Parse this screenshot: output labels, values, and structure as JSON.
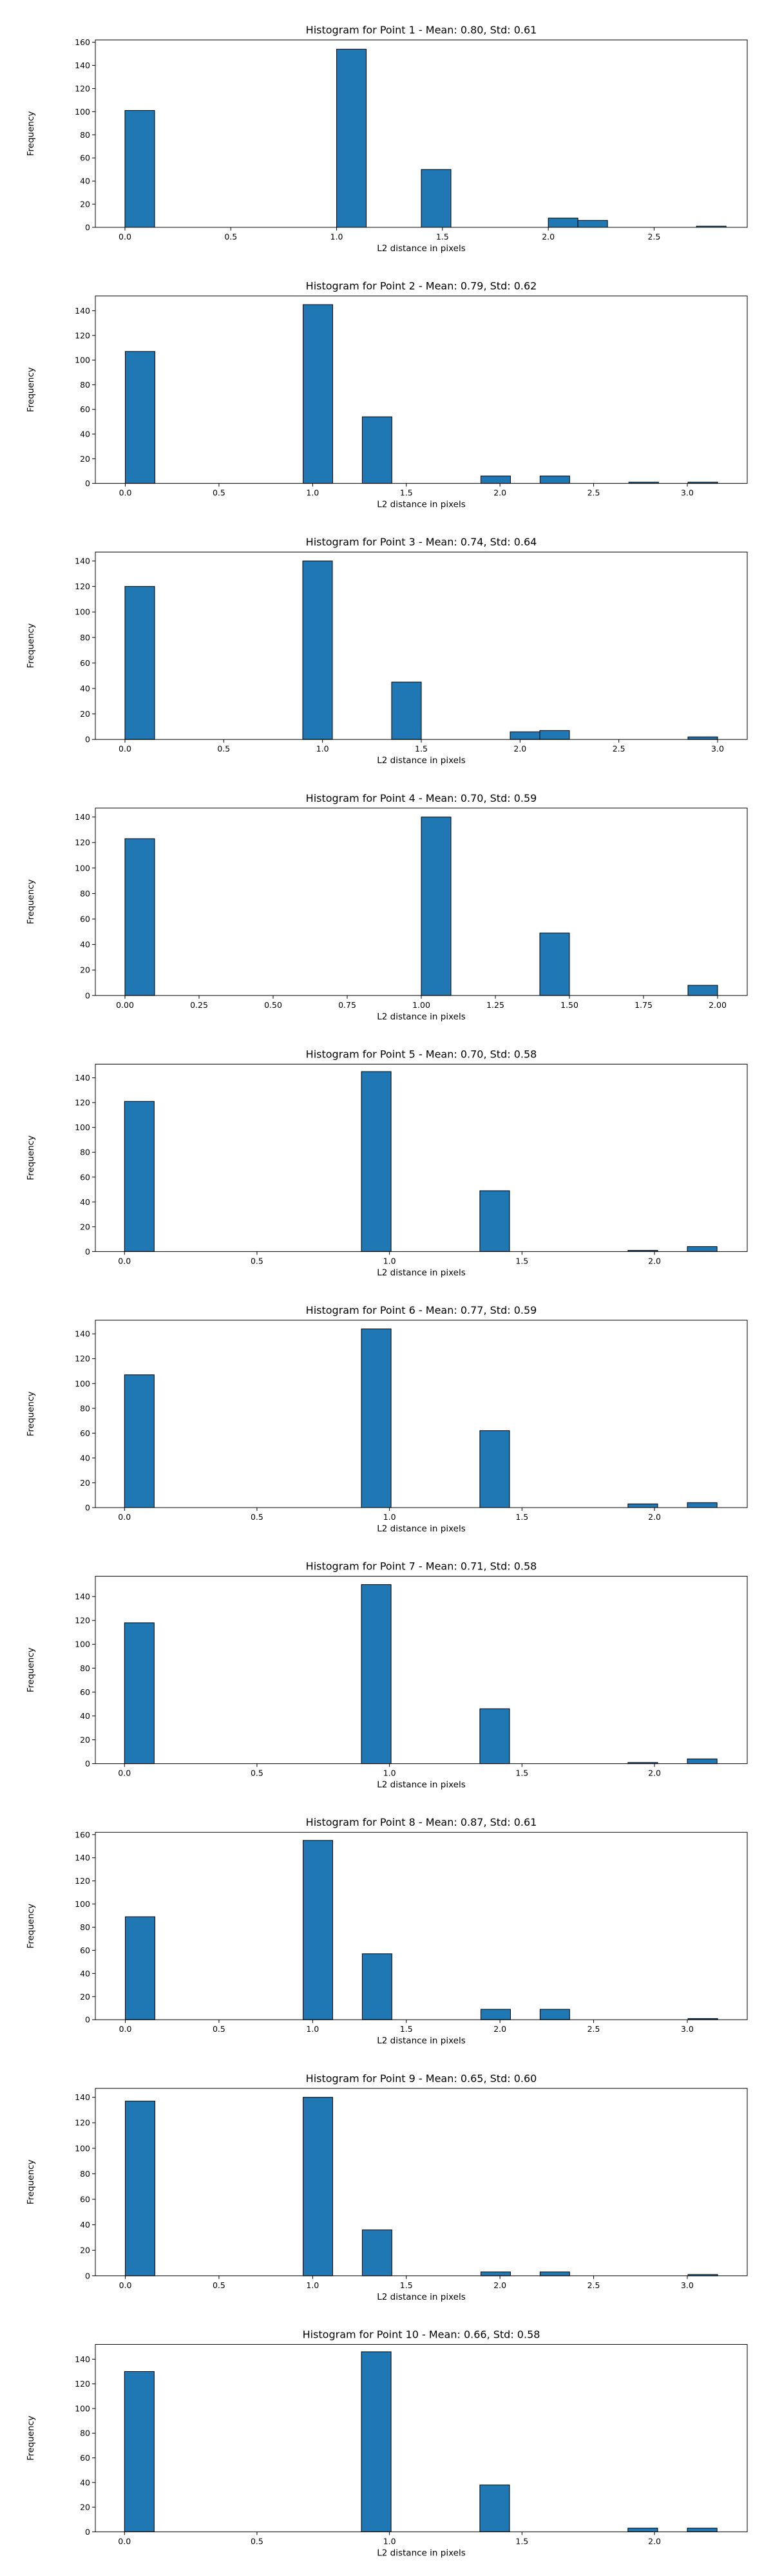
{
  "colors": {
    "bar_fill": "#1f77b4",
    "bar_edge": "#000000",
    "axes": "#000000",
    "background": "#ffffff"
  },
  "chart_data": [
    {
      "type": "bar",
      "title": "Histogram for Point 1 - Mean: 0.80, Std: 0.61",
      "xlabel": "L2 distance in pixels",
      "ylabel": "Frequency",
      "xlim": [
        -0.14,
        2.94
      ],
      "ylim": [
        0,
        162
      ],
      "xticks": [
        0.0,
        0.5,
        1.0,
        1.5,
        2.0,
        2.5
      ],
      "xtick_labels": [
        "0.0",
        "0.5",
        "1.0",
        "1.5",
        "2.0",
        "2.5"
      ],
      "yticks": [
        0,
        20,
        40,
        60,
        80,
        100,
        120,
        140,
        160
      ],
      "ytick_labels": [
        "0",
        "20",
        "40",
        "60",
        "80",
        "100",
        "120",
        "140",
        "160"
      ],
      "bins": [
        [
          0.0,
          0.14,
          101
        ],
        [
          1.0,
          1.14,
          154
        ],
        [
          1.4,
          1.54,
          50
        ],
        [
          2.0,
          2.14,
          8
        ],
        [
          2.14,
          2.28,
          6
        ],
        [
          2.7,
          2.84,
          1
        ]
      ],
      "grid": false,
      "legend": "none"
    },
    {
      "type": "bar",
      "title": "Histogram for Point 2 - Mean: 0.79, Std: 0.62",
      "xlabel": "L2 distance in pixels",
      "ylabel": "Frequency",
      "xlim": [
        -0.16,
        3.32
      ],
      "ylim": [
        0,
        152
      ],
      "xticks": [
        0.0,
        0.5,
        1.0,
        1.5,
        2.0,
        2.5,
        3.0
      ],
      "xtick_labels": [
        "0.0",
        "0.5",
        "1.0",
        "1.5",
        "2.0",
        "2.5",
        "3.0"
      ],
      "yticks": [
        0,
        20,
        40,
        60,
        80,
        100,
        120,
        140
      ],
      "ytick_labels": [
        "0",
        "20",
        "40",
        "60",
        "80",
        "100",
        "120",
        "140"
      ],
      "bins": [
        [
          0.0,
          0.158,
          107
        ],
        [
          0.949,
          1.107,
          145
        ],
        [
          1.265,
          1.423,
          54
        ],
        [
          1.898,
          2.056,
          6
        ],
        [
          2.214,
          2.372,
          6
        ],
        [
          2.688,
          2.846,
          1
        ],
        [
          3.004,
          3.162,
          1
        ]
      ],
      "grid": false,
      "legend": "none"
    },
    {
      "type": "bar",
      "title": "Histogram for Point 3 - Mean: 0.74, Std: 0.64",
      "xlabel": "L2 distance in pixels",
      "ylabel": "Frequency",
      "xlim": [
        -0.15,
        3.15
      ],
      "ylim": [
        0,
        147
      ],
      "xticks": [
        0.0,
        0.5,
        1.0,
        1.5,
        2.0,
        2.5,
        3.0
      ],
      "xtick_labels": [
        "0.0",
        "0.5",
        "1.0",
        "1.5",
        "2.0",
        "2.5",
        "3.0"
      ],
      "yticks": [
        0,
        20,
        40,
        60,
        80,
        100,
        120,
        140
      ],
      "ytick_labels": [
        "0",
        "20",
        "40",
        "60",
        "80",
        "100",
        "120",
        "140"
      ],
      "bins": [
        [
          0.0,
          0.15,
          120
        ],
        [
          0.9,
          1.05,
          140
        ],
        [
          1.35,
          1.5,
          45
        ],
        [
          1.95,
          2.1,
          6
        ],
        [
          2.1,
          2.25,
          7
        ],
        [
          2.85,
          3.0,
          2
        ]
      ],
      "grid": false,
      "legend": "none"
    },
    {
      "type": "bar",
      "title": "Histogram for Point 4 - Mean: 0.70, Std: 0.59",
      "xlabel": "L2 distance in pixels",
      "ylabel": "Frequency",
      "xlim": [
        -0.1,
        2.1
      ],
      "ylim": [
        0,
        147
      ],
      "xticks": [
        0.0,
        0.25,
        0.5,
        0.75,
        1.0,
        1.25,
        1.5,
        1.75,
        2.0
      ],
      "xtick_labels": [
        "0.00",
        "0.25",
        "0.50",
        "0.75",
        "1.00",
        "1.25",
        "1.50",
        "1.75",
        "2.00"
      ],
      "yticks": [
        0,
        20,
        40,
        60,
        80,
        100,
        120,
        140
      ],
      "ytick_labels": [
        "0",
        "20",
        "40",
        "60",
        "80",
        "100",
        "120",
        "140"
      ],
      "bins": [
        [
          0.0,
          0.1,
          123
        ],
        [
          1.0,
          1.1,
          140
        ],
        [
          1.4,
          1.5,
          49
        ],
        [
          1.9,
          2.0,
          8
        ]
      ],
      "grid": false,
      "legend": "none"
    },
    {
      "type": "bar",
      "title": "Histogram for Point 5 - Mean: 0.70, Std: 0.58",
      "xlabel": "L2 distance in pixels",
      "ylabel": "Frequency",
      "xlim": [
        -0.11,
        2.35
      ],
      "ylim": [
        0,
        151
      ],
      "xticks": [
        0.0,
        0.5,
        1.0,
        1.5,
        2.0
      ],
      "xtick_labels": [
        "0.0",
        "0.5",
        "1.0",
        "1.5",
        "2.0"
      ],
      "yticks": [
        0,
        20,
        40,
        60,
        80,
        100,
        120,
        140
      ],
      "ytick_labels": [
        "0",
        "20",
        "40",
        "60",
        "80",
        "100",
        "120",
        "140"
      ],
      "bins": [
        [
          0.0,
          0.112,
          121
        ],
        [
          0.894,
          1.006,
          145
        ],
        [
          1.341,
          1.453,
          49
        ],
        [
          1.9,
          2.012,
          1
        ],
        [
          2.124,
          2.236,
          4
        ]
      ],
      "grid": false,
      "legend": "none"
    },
    {
      "type": "bar",
      "title": "Histogram for Point 6 - Mean: 0.77, Std: 0.59",
      "xlabel": "L2 distance in pixels",
      "ylabel": "Frequency",
      "xlim": [
        -0.11,
        2.35
      ],
      "ylim": [
        0,
        151
      ],
      "xticks": [
        0.0,
        0.5,
        1.0,
        1.5,
        2.0
      ],
      "xtick_labels": [
        "0.0",
        "0.5",
        "1.0",
        "1.5",
        "2.0"
      ],
      "yticks": [
        0,
        20,
        40,
        60,
        80,
        100,
        120,
        140
      ],
      "ytick_labels": [
        "0",
        "20",
        "40",
        "60",
        "80",
        "100",
        "120",
        "140"
      ],
      "bins": [
        [
          0.0,
          0.112,
          107
        ],
        [
          0.894,
          1.006,
          144
        ],
        [
          1.341,
          1.453,
          62
        ],
        [
          1.9,
          2.012,
          3
        ],
        [
          2.124,
          2.236,
          4
        ]
      ],
      "grid": false,
      "legend": "none"
    },
    {
      "type": "bar",
      "title": "Histogram for Point 7 - Mean: 0.71, Std: 0.58",
      "xlabel": "L2 distance in pixels",
      "ylabel": "Frequency",
      "xlim": [
        -0.11,
        2.35
      ],
      "ylim": [
        0,
        157
      ],
      "xticks": [
        0.0,
        0.5,
        1.0,
        1.5,
        2.0
      ],
      "xtick_labels": [
        "0.0",
        "0.5",
        "1.0",
        "1.5",
        "2.0"
      ],
      "yticks": [
        0,
        20,
        40,
        60,
        80,
        100,
        120,
        140
      ],
      "ytick_labels": [
        "0",
        "20",
        "40",
        "60",
        "80",
        "100",
        "120",
        "140"
      ],
      "bins": [
        [
          0.0,
          0.112,
          118
        ],
        [
          0.894,
          1.006,
          150
        ],
        [
          1.341,
          1.453,
          46
        ],
        [
          1.9,
          2.012,
          1
        ],
        [
          2.124,
          2.236,
          4
        ]
      ],
      "grid": false,
      "legend": "none"
    },
    {
      "type": "bar",
      "title": "Histogram for Point 8 - Mean: 0.87, Std: 0.61",
      "xlabel": "L2 distance in pixels",
      "ylabel": "Frequency",
      "xlim": [
        -0.16,
        3.32
      ],
      "ylim": [
        0,
        162
      ],
      "xticks": [
        0.0,
        0.5,
        1.0,
        1.5,
        2.0,
        2.5,
        3.0
      ],
      "xtick_labels": [
        "0.0",
        "0.5",
        "1.0",
        "1.5",
        "2.0",
        "2.5",
        "3.0"
      ],
      "yticks": [
        0,
        20,
        40,
        60,
        80,
        100,
        120,
        140,
        160
      ],
      "ytick_labels": [
        "0",
        "20",
        "40",
        "60",
        "80",
        "100",
        "120",
        "140",
        "160"
      ],
      "bins": [
        [
          0.0,
          0.158,
          89
        ],
        [
          0.949,
          1.107,
          155
        ],
        [
          1.265,
          1.423,
          57
        ],
        [
          1.898,
          2.056,
          9
        ],
        [
          2.214,
          2.372,
          9
        ],
        [
          3.004,
          3.162,
          1
        ]
      ],
      "grid": false,
      "legend": "none"
    },
    {
      "type": "bar",
      "title": "Histogram for Point 9 - Mean: 0.65, Std: 0.60",
      "xlabel": "L2 distance in pixels",
      "ylabel": "Frequency",
      "xlim": [
        -0.16,
        3.32
      ],
      "ylim": [
        0,
        147
      ],
      "xticks": [
        0.0,
        0.5,
        1.0,
        1.5,
        2.0,
        2.5,
        3.0
      ],
      "xtick_labels": [
        "0.0",
        "0.5",
        "1.0",
        "1.5",
        "2.0",
        "2.5",
        "3.0"
      ],
      "yticks": [
        0,
        20,
        40,
        60,
        80,
        100,
        120,
        140
      ],
      "ytick_labels": [
        "0",
        "20",
        "40",
        "60",
        "80",
        "100",
        "120",
        "140"
      ],
      "bins": [
        [
          0.0,
          0.158,
          137
        ],
        [
          0.949,
          1.107,
          140
        ],
        [
          1.265,
          1.423,
          36
        ],
        [
          1.898,
          2.056,
          3
        ],
        [
          2.214,
          2.372,
          3
        ],
        [
          3.004,
          3.162,
          1
        ]
      ],
      "grid": false,
      "legend": "none"
    },
    {
      "type": "bar",
      "title": "Histogram for Point 10 - Mean: 0.66, Std: 0.58",
      "xlabel": "L2 distance in pixels",
      "ylabel": "Frequency",
      "xlim": [
        -0.11,
        2.35
      ],
      "ylim": [
        0,
        152
      ],
      "xticks": [
        0.0,
        0.5,
        1.0,
        1.5,
        2.0
      ],
      "xtick_labels": [
        "0.0",
        "0.5",
        "1.0",
        "1.5",
        "2.0"
      ],
      "yticks": [
        0,
        20,
        40,
        60,
        80,
        100,
        120,
        140
      ],
      "ytick_labels": [
        "0",
        "20",
        "40",
        "60",
        "80",
        "100",
        "120",
        "140"
      ],
      "bins": [
        [
          0.0,
          0.112,
          130
        ],
        [
          0.894,
          1.006,
          146
        ],
        [
          1.341,
          1.453,
          38
        ],
        [
          1.9,
          2.012,
          3
        ],
        [
          2.124,
          2.236,
          3
        ]
      ],
      "grid": false,
      "legend": "none"
    }
  ]
}
